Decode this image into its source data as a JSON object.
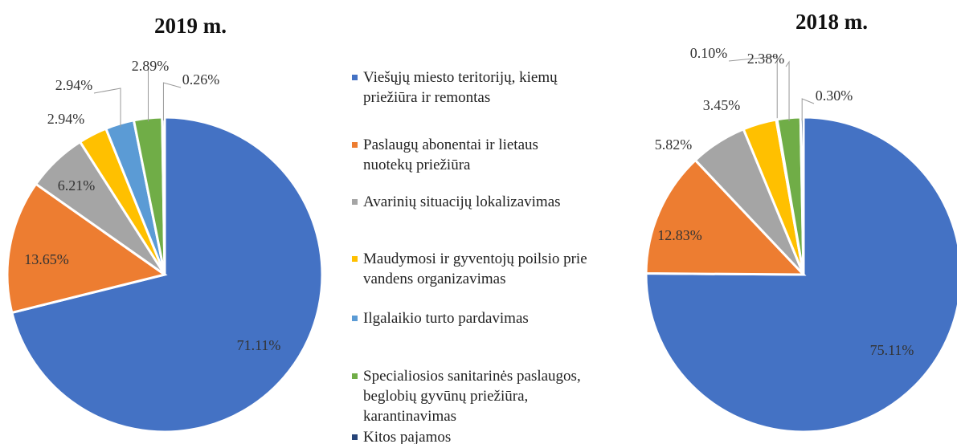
{
  "chart_data": [
    {
      "type": "pie",
      "title": "2019 m.",
      "values": [
        71.11,
        13.65,
        6.21,
        2.94,
        2.94,
        2.89,
        0.26
      ],
      "value_labels": [
        "71.11%",
        "13.65%",
        "6.21%",
        "2.94%",
        "2.94%",
        "2.89%",
        "0.26%"
      ]
    },
    {
      "type": "pie",
      "title": "2018 m.",
      "values": [
        75.11,
        12.83,
        5.82,
        3.45,
        0.1,
        2.38,
        0.3
      ],
      "value_labels": [
        "75.11%",
        "12.83%",
        "5.82%",
        "3.45%",
        "0.10%",
        "2.38%",
        "0.30%"
      ]
    }
  ],
  "legend": {
    "categories": [
      "Viešųjų miesto teritorijų, kiemų priežiūra ir remontas",
      "Paslaugų abonentai ir lietaus nuotekų priežiūra",
      "Avarinių situacijų lokalizavimas",
      "Maudymosi ir gyventojų poilsio prie vandens organizavimas",
      "Ilgalaikio turto pardavimas",
      "Specialiosios sanitarinės paslaugos, beglobių gyvūnų priežiūra, karantinavimas",
      "Kitos pajamos"
    ],
    "colors": [
      "#4472c4",
      "#ed7d31",
      "#a5a5a5",
      "#ffc000",
      "#5b9bd5",
      "#70ad47",
      "#264478"
    ]
  }
}
